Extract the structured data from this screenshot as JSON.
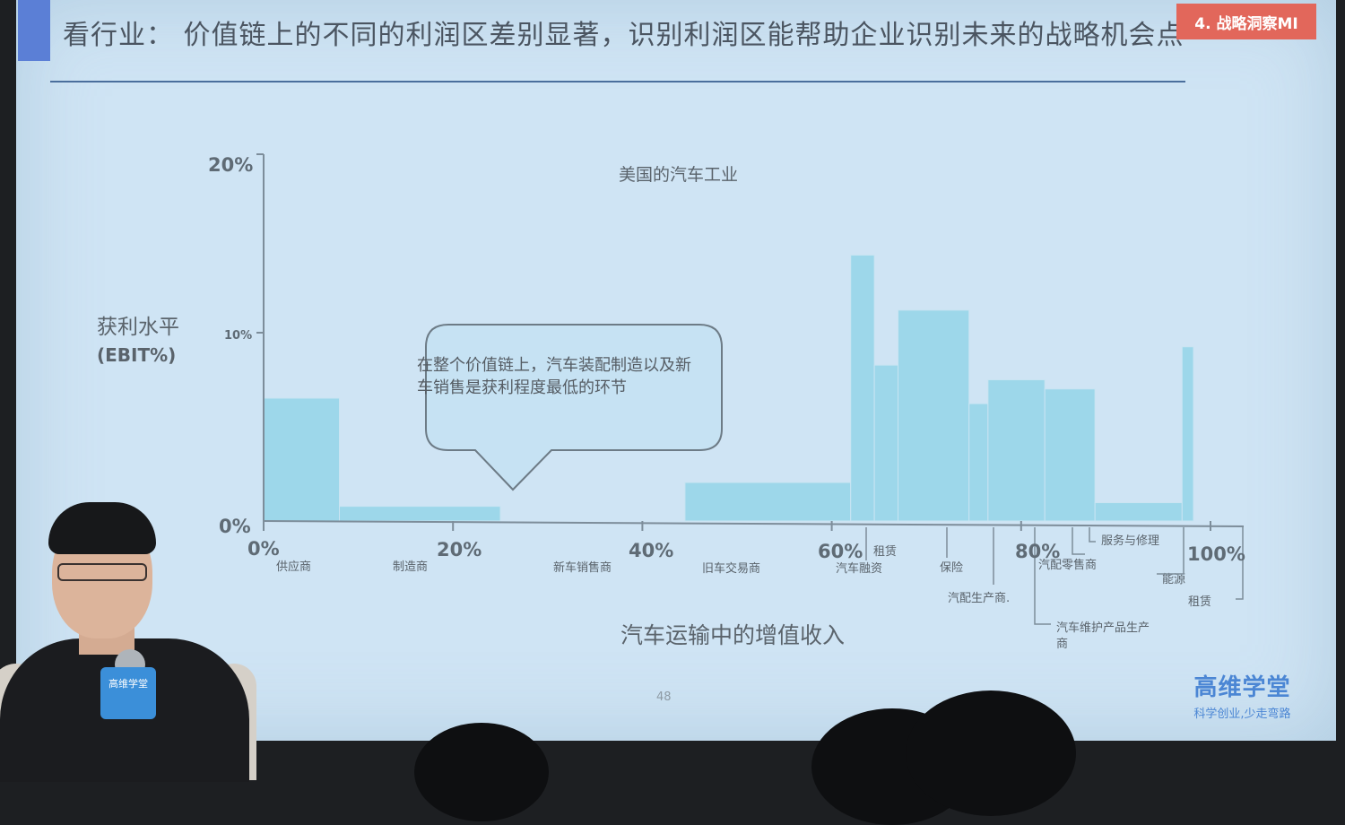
{
  "slide": {
    "title": "看行业：  价值链上的不同的利润区差别显著，识别利润区能帮助企业识别未来的战略机会点",
    "section_badge": "4. 战略洞察MI",
    "page_number": "48",
    "callout": "在整个价值链上，汽车装配制造以及新车销售是获利程度最低的环节",
    "logo": {
      "name": "高维学堂",
      "slogan": "科学创业,少走弯路"
    },
    "mic_label": "高维学堂"
  },
  "chart_data": {
    "type": "bar",
    "variable_width": true,
    "title": "美国的汽车工业",
    "ylabel": "获利水平",
    "ylabel_unit": "(EBIT%)",
    "xlabel": "汽车运输中的增值收入",
    "xlim": [
      0,
      100
    ],
    "ylim": [
      0,
      20
    ],
    "x_ticks": [
      "0%",
      "20%",
      "40%",
      "60%",
      "80%",
      "100%"
    ],
    "y_ticks": [
      "0%",
      "10%",
      "20%"
    ],
    "bar_color": "#9dd7ea",
    "segments": [
      {
        "label": "供应商",
        "x0": 0,
        "x1": 8,
        "value": 6.7
      },
      {
        "label": "制造商",
        "x0": 8,
        "x1": 25,
        "value": 0.8
      },
      {
        "label": "新车销售商",
        "x0": 25,
        "x1": 44.5,
        "value": 0
      },
      {
        "label": "旧车交易商",
        "x0": 44.5,
        "x1": 62,
        "value": 2.1
      },
      {
        "label": "汽车融资",
        "x0": 62,
        "x1": 64.5,
        "value": 14.5
      },
      {
        "label": "租赁",
        "x0": 64.5,
        "x1": 67,
        "value": 8.5
      },
      {
        "label": "保险",
        "x0": 67,
        "x1": 74.5,
        "value": 11.5
      },
      {
        "label": "汽配生产商.",
        "x0": 74.5,
        "x1": 76.5,
        "value": 6.4
      },
      {
        "label": "汽车维护产品生产商",
        "x0": 76.5,
        "x1": 82.5,
        "value": 7.7
      },
      {
        "label": "汽配零售商",
        "x0": 82.5,
        "x1": 87.8,
        "value": 7.2
      },
      {
        "label": "服务与修理",
        "x0": 87.8,
        "x1": 97,
        "value": 1.0
      },
      {
        "label": "能源",
        "x0": 97,
        "x1": 98.2,
        "value": 9.5
      },
      {
        "label": "租赁",
        "x0": 98.2,
        "x1": 100,
        "value": 0
      }
    ]
  }
}
